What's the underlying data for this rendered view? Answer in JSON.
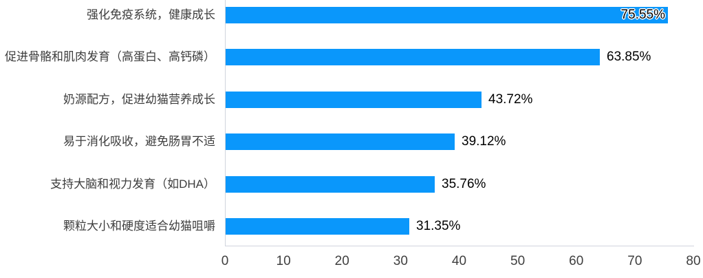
{
  "chart_data": {
    "type": "bar",
    "orientation": "horizontal",
    "title": "",
    "categories": [
      "强化免疫系统，健康成长",
      "促进骨骼和肌肉发育（高蛋白、高钙磷）",
      "奶源配方，促进幼猫营养成长",
      "易于消化吸收，避免肠胃不适",
      "支持大脑和视力发育（如DHA）",
      "颗粒大小和硬度适合幼猫咀嚼"
    ],
    "values": [
      75.55,
      63.85,
      43.72,
      39.12,
      35.76,
      31.35
    ],
    "value_labels": [
      "75.55%",
      "63.85%",
      "43.72%",
      "39.12%",
      "35.76%",
      "31.35%"
    ],
    "xlabel": "",
    "ylabel": "",
    "xlim": [
      0,
      80
    ],
    "x_ticks": [
      "0",
      "10",
      "20",
      "30",
      "40",
      "50",
      "60",
      "70",
      "80"
    ],
    "grid": false,
    "legend": "none",
    "bar_color": "#0a97fb",
    "axis_line_color": "#d0d4dd",
    "category_label_color": "#3d3d3d",
    "value_label_color": "#000000",
    "tick_label_color": "#3f3f3f"
  }
}
